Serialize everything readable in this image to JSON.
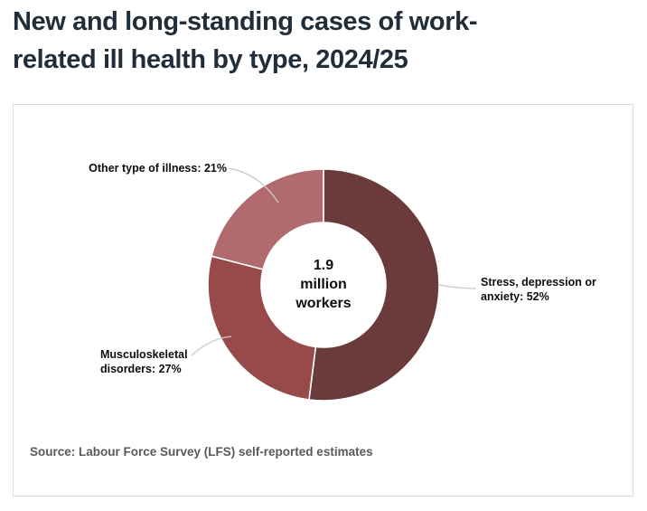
{
  "header": {
    "title_line1": "New and long-standing cases of work-",
    "title_line2": "related ill health by type, 2024/25"
  },
  "footer": {
    "source": "Source: Labour Force Survey (LFS) self-reported estimates"
  },
  "chart_data": {
    "type": "pie",
    "subtype": "donut",
    "title": "New and long-standing cases of work-related ill health by type, 2024/25",
    "center_label_lines": [
      "1.9",
      "million",
      "workers"
    ],
    "total_label": "1.9 million workers",
    "start_angle_deg": 0,
    "direction": "clockwise",
    "inner_radius_ratio": 0.54,
    "segments": [
      {
        "label": "Stress, depression or anxiety",
        "value": 52,
        "unit": "%",
        "color": "#6b3a3b",
        "callout_lines": [
          "Stress, depression or",
          "anxiety: 52%"
        ]
      },
      {
        "label": "Musculoskeletal disorders",
        "value": 27,
        "unit": "%",
        "color": "#984a4b",
        "callout_lines": [
          "Musculoskeletal",
          "disorders: 27%"
        ]
      },
      {
        "label": "Other type of illness",
        "value": 21,
        "unit": "%",
        "color": "#b16a6d",
        "callout_lines": [
          "Other type of illness: 21%"
        ]
      }
    ],
    "colors": {
      "title_text": "#222d3a",
      "label_text": "#0d0d0d",
      "source_text": "#595959",
      "card_border": "#dcdcdc",
      "leader_line": "#c9c9c9",
      "segment_separator": "#ffffff"
    }
  }
}
